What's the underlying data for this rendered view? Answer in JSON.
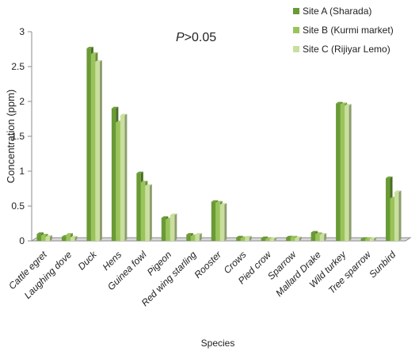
{
  "chart_data": {
    "type": "bar",
    "xlabel": "Species",
    "ylabel": "Concentration (ppm)",
    "ylim": [
      0,
      3
    ],
    "yticks": [
      "0",
      "0.5",
      "1",
      "1.5",
      "2",
      "2.5",
      "3"
    ],
    "grid": false,
    "legend_position": "top-right",
    "annotation": {
      "italic": "P",
      "rest": ">0.05"
    },
    "categories": [
      "Cattle egret",
      "Laughing dove",
      "Duck",
      "Hens",
      "Guinea fowl",
      "Pigeon",
      "Red wing starling",
      "Rooster",
      "Crows",
      "Pied crow",
      "Sparrow",
      "Mallard Drake",
      "Wild turkey",
      "Tree sparrow",
      "Sunbird"
    ],
    "series": [
      {
        "name": "Site A (Sharada)",
        "color": "#6a9a35",
        "values": [
          0.1,
          0.06,
          2.76,
          1.9,
          0.97,
          0.33,
          0.09,
          0.56,
          0.05,
          0.04,
          0.05,
          0.12,
          1.97,
          0.03,
          0.9
        ]
      },
      {
        "name": "Site B (Kurmi market)",
        "color": "#99c45a",
        "values": [
          0.08,
          0.09,
          2.68,
          1.7,
          0.84,
          0.31,
          0.07,
          0.55,
          0.04,
          0.03,
          0.05,
          0.1,
          1.96,
          0.03,
          0.61
        ]
      },
      {
        "name": "Site C (Rijiyar Lemo)",
        "color": "#c9df9e",
        "values": [
          0.06,
          0.05,
          2.57,
          1.8,
          0.79,
          0.37,
          0.09,
          0.52,
          0.05,
          0.03,
          0.04,
          0.09,
          1.94,
          0.03,
          0.7
        ]
      }
    ]
  }
}
